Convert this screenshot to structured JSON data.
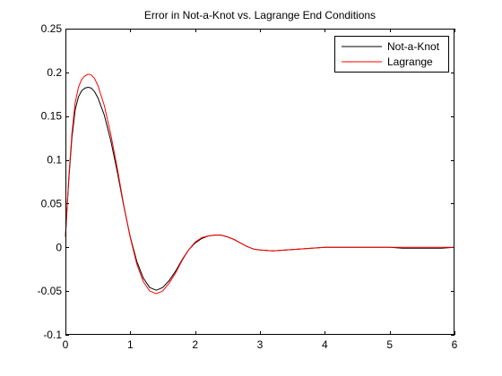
{
  "chart_data": {
    "type": "line",
    "title": "Error in Not-a-Knot vs. Lagrange End Conditions",
    "xlabel": "",
    "ylabel": "",
    "xlim": [
      0,
      6
    ],
    "ylim": [
      -0.1,
      0.25
    ],
    "grid": false,
    "legend_position": "top-right",
    "xticks": [
      0,
      1,
      2,
      3,
      4,
      5,
      6
    ],
    "xtick_labels": [
      "0",
      "1",
      "2",
      "3",
      "4",
      "5",
      "6"
    ],
    "yticks": [
      -0.1,
      -0.05,
      0,
      0.05,
      0.1,
      0.15,
      0.2,
      0.25
    ],
    "ytick_labels": [
      "-0.1",
      "-0.05",
      "0",
      "0.05",
      "0.1",
      "0.15",
      "0.2",
      "0.25"
    ],
    "series": [
      {
        "name": "Not-a-Knot",
        "color": "#000000",
        "x": [
          0,
          0.05,
          0.1,
          0.15,
          0.2,
          0.25,
          0.3,
          0.35,
          0.4,
          0.45,
          0.5,
          0.6,
          0.7,
          0.8,
          0.9,
          1.0,
          1.1,
          1.2,
          1.3,
          1.4,
          1.5,
          1.6,
          1.7,
          1.8,
          1.9,
          2.0,
          2.1,
          2.2,
          2.3,
          2.4,
          2.5,
          2.6,
          2.7,
          2.8,
          2.9,
          3.0,
          3.2,
          3.4,
          3.6,
          3.8,
          4.0,
          4.2,
          4.4,
          4.6,
          4.8,
          5.0,
          5.2,
          5.4,
          5.6,
          5.8,
          6.0
        ],
        "y": [
          0.012,
          0.075,
          0.125,
          0.157,
          0.172,
          0.179,
          0.182,
          0.183,
          0.182,
          0.178,
          0.171,
          0.151,
          0.122,
          0.086,
          0.047,
          0.012,
          -0.016,
          -0.035,
          -0.046,
          -0.049,
          -0.046,
          -0.038,
          -0.027,
          -0.014,
          -0.003,
          0.005,
          0.01,
          0.013,
          0.014,
          0.014,
          0.012,
          0.009,
          0.005,
          0.001,
          -0.002,
          -0.003,
          -0.004,
          -0.003,
          -0.002,
          -0.001,
          0.0,
          0.0,
          0.0,
          0.0,
          0.0,
          0.0,
          -0.001,
          -0.001,
          -0.001,
          -0.001,
          0.0
        ]
      },
      {
        "name": "Lagrange",
        "color": "#ff0000",
        "x": [
          0,
          0.05,
          0.1,
          0.15,
          0.2,
          0.25,
          0.3,
          0.35,
          0.4,
          0.45,
          0.5,
          0.6,
          0.7,
          0.8,
          0.9,
          1.0,
          1.1,
          1.2,
          1.3,
          1.4,
          1.5,
          1.6,
          1.7,
          1.8,
          1.9,
          2.0,
          2.1,
          2.2,
          2.3,
          2.4,
          2.5,
          2.6,
          2.7,
          2.8,
          2.9,
          3.0,
          3.2,
          3.4,
          3.6,
          3.8,
          4.0,
          4.2,
          4.4,
          4.6,
          4.8,
          5.0,
          5.2,
          5.4,
          5.6,
          5.8,
          6.0
        ],
        "y": [
          0.012,
          0.078,
          0.13,
          0.165,
          0.183,
          0.192,
          0.196,
          0.198,
          0.197,
          0.193,
          0.185,
          0.162,
          0.129,
          0.09,
          0.048,
          0.011,
          -0.019,
          -0.039,
          -0.05,
          -0.053,
          -0.05,
          -0.041,
          -0.029,
          -0.015,
          -0.003,
          0.006,
          0.011,
          0.013,
          0.014,
          0.014,
          0.012,
          0.009,
          0.005,
          0.001,
          -0.002,
          -0.003,
          -0.004,
          -0.003,
          -0.002,
          -0.001,
          0.0,
          0.0,
          0.0,
          0.0,
          0.0,
          0.0,
          0.0,
          0.0,
          0.0,
          0.0,
          0.0
        ]
      }
    ]
  }
}
